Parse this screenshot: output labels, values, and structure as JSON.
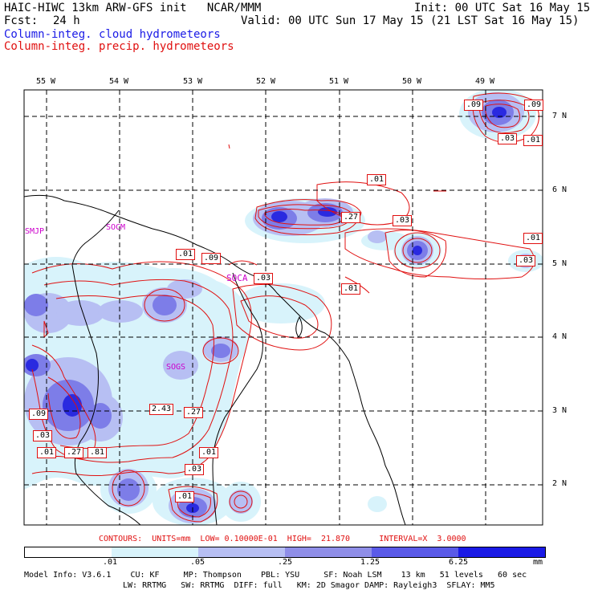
{
  "header": {
    "title": "HAIC-HIWC 13km ARW-GFS init   NCAR/MMM",
    "init": "Init: 00 UTC Sat 16 May 15",
    "fcst_label": "Fcst:",
    "fcst_value": "24 h",
    "valid": "Valid: 00 UTC Sun 17 May 15 (21 LST Sat 16 May 15)",
    "legend_cloud": "Column-integ. cloud hydrometeors",
    "legend_precip": "Column-integ. precip. hydrometeors"
  },
  "axes": {
    "longitudes": [
      "55 W",
      "54 W",
      "53 W",
      "52 W",
      "51 W",
      "50 W",
      "49 W"
    ],
    "latitudes": [
      "7 N",
      "6 N",
      "5 N",
      "4 N",
      "3 N",
      "2 N"
    ]
  },
  "stations": [
    "SMJP",
    "SOCM",
    "SOCA",
    "SOGS"
  ],
  "contour_labels": [
    ".09",
    ".09",
    ".03",
    ".01",
    ".01",
    ".27",
    ".03",
    ".01",
    ".03",
    ".01",
    ".09",
    ".03",
    ".01",
    ".09",
    ".03",
    ".01",
    ".27",
    ".81",
    "2.43",
    ".27",
    ".01",
    ".03",
    ".01"
  ],
  "contours_info": "CONTOURS:  UNITS=mm  LOW= 0.10000E-01  HIGH=  21.870      INTERVAL=X  3.0000",
  "colorbar": {
    "ticks": [
      ".01",
      ".05",
      ".25",
      "1.25",
      "6.25"
    ],
    "units": "mm",
    "colors": [
      "#ffffff",
      "#d8f3fb",
      "#b7bff3",
      "#8f8ee8",
      "#5a5ae8",
      "#1a1ae6"
    ]
  },
  "model_info": {
    "line1": "Model Info: V3.6.1    CU: KF     MP: Thompson    PBL: YSU     SF: Noah LSM    13 km   51 levels   60 sec",
    "line2": "LW: RRTMG   SW: RRTMG  DIFF: full   KM: 2D Smagor DAMP: Rayleigh3  SFLAY: MM5"
  }
}
